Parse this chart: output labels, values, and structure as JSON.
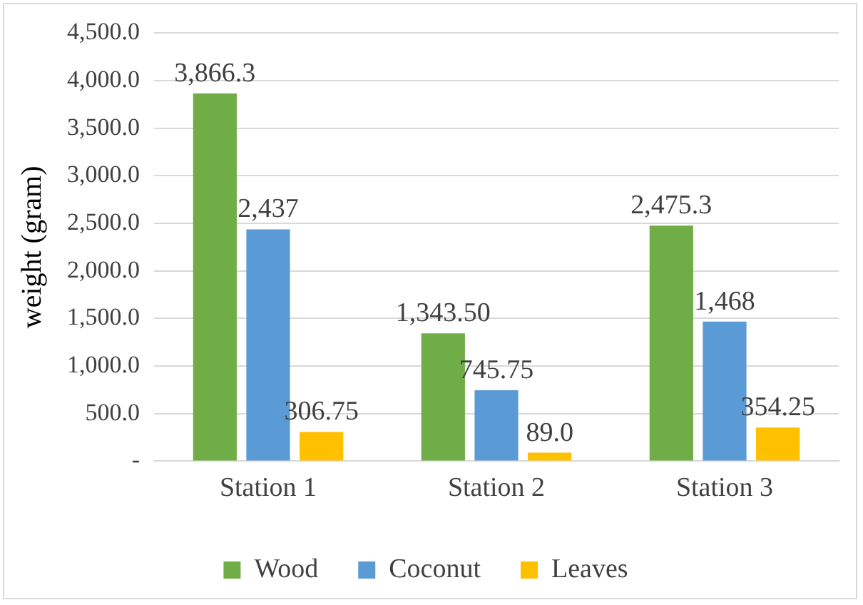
{
  "chart_data": {
    "type": "bar",
    "ylabel": "weight (gram)",
    "categories": [
      "Station 1",
      "Station 2",
      "Station 3"
    ],
    "series": [
      {
        "name": "Wood",
        "color": "#70ad47",
        "values": [
          3866.3,
          1343.5,
          2475.3
        ],
        "value_labels": [
          "3,866.3",
          "1,343.50",
          "2,475.3"
        ]
      },
      {
        "name": "Coconut",
        "color": "#5b9bd5",
        "values": [
          2437,
          745.75,
          1468
        ],
        "value_labels": [
          "2,437",
          "745.75",
          "1,468"
        ]
      },
      {
        "name": "Leaves",
        "color": "#ffc000",
        "values": [
          306.75,
          89,
          354.25
        ],
        "value_labels": [
          "306.75",
          "89.0",
          "354.25"
        ]
      }
    ],
    "ylim": [
      0,
      4500
    ],
    "yticks": [
      {
        "value": 0,
        "label": "-"
      },
      {
        "value": 500,
        "label": "500.0"
      },
      {
        "value": 1000,
        "label": "1,000.0"
      },
      {
        "value": 1500,
        "label": "1,500.0"
      },
      {
        "value": 2000,
        "label": "2,000.0"
      },
      {
        "value": 2500,
        "label": "2,500.0"
      },
      {
        "value": 3000,
        "label": "3,000.0"
      },
      {
        "value": 3500,
        "label": "3,500.0"
      },
      {
        "value": 4000,
        "label": "4,000.0"
      },
      {
        "value": 4500,
        "label": "4,500.0"
      }
    ],
    "grid": "y",
    "legend": "bottom"
  }
}
